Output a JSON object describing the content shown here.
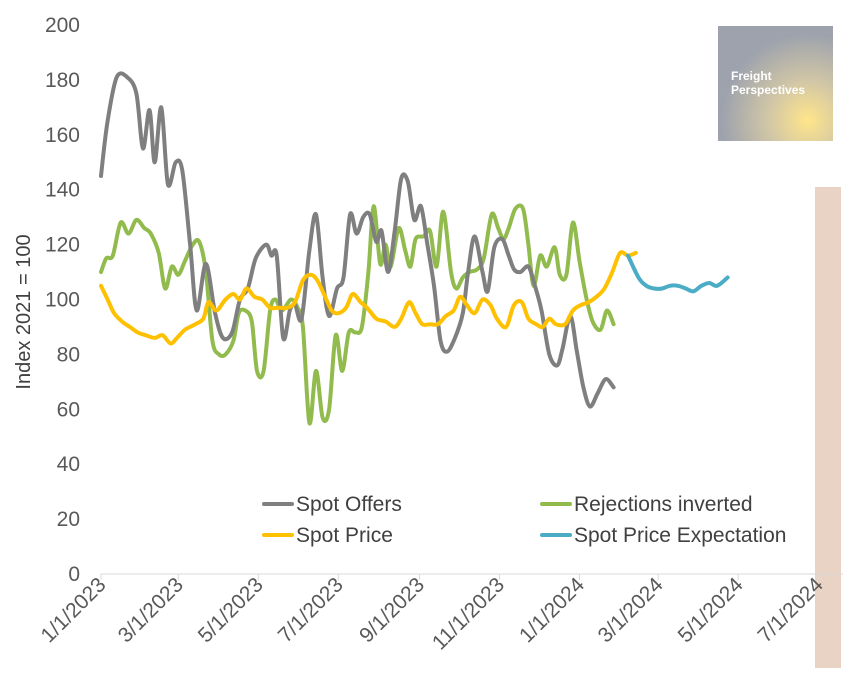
{
  "chart_data": {
    "type": "line",
    "ylabel": "Index 2021 = 100",
    "ylim": [
      0,
      200
    ],
    "y_ticks": [
      0,
      20,
      40,
      60,
      80,
      100,
      120,
      140,
      160,
      180,
      200
    ],
    "x_tick_labels": [
      "1/1/2023",
      "3/1/2023",
      "5/1/2023",
      "7/1/2023",
      "9/1/2023",
      "11/1/2023",
      "1/1/2024",
      "3/1/2024",
      "5/1/2024",
      "7/1/2024"
    ],
    "x_tick_days": [
      0,
      59,
      120,
      181,
      243,
      304,
      365,
      425,
      486,
      547
    ],
    "xlim_days": [
      0,
      566
    ],
    "shaded_band_days": [
      546,
      566
    ],
    "logo": {
      "line1": "Freight",
      "line2": "Perspectives"
    },
    "colors": {
      "spot_offers": "#7f7f7f",
      "rejections": "#92bb4e",
      "spot_price": "#ffc000",
      "expectation": "#4bacc6",
      "shade": "#e4cbbb"
    },
    "series": [
      {
        "key": "spot_offers",
        "name": "Spot Offers",
        "points": [
          [
            0,
            145
          ],
          [
            5,
            165
          ],
          [
            12,
            181
          ],
          [
            20,
            181
          ],
          [
            27,
            175
          ],
          [
            32,
            155
          ],
          [
            37,
            169
          ],
          [
            41,
            150
          ],
          [
            46,
            170
          ],
          [
            51,
            142
          ],
          [
            57,
            150
          ],
          [
            62,
            147
          ],
          [
            68,
            120
          ],
          [
            73,
            96
          ],
          [
            80,
            113
          ],
          [
            87,
            95
          ],
          [
            93,
            86
          ],
          [
            100,
            88
          ],
          [
            106,
            100
          ],
          [
            112,
            104
          ],
          [
            118,
            115
          ],
          [
            126,
            120
          ],
          [
            130,
            116
          ],
          [
            134,
            116
          ],
          [
            139,
            86
          ],
          [
            144,
            96
          ],
          [
            148,
            98
          ],
          [
            153,
            93
          ],
          [
            159,
            118
          ],
          [
            164,
            131
          ],
          [
            169,
            108
          ],
          [
            174,
            94
          ],
          [
            180,
            104
          ],
          [
            185,
            108
          ],
          [
            190,
            131
          ],
          [
            195,
            124
          ],
          [
            200,
            130
          ],
          [
            205,
            131
          ],
          [
            210,
            121
          ],
          [
            214,
            125
          ],
          [
            219,
            110
          ],
          [
            224,
            125
          ],
          [
            229,
            144
          ],
          [
            234,
            143
          ],
          [
            239,
            129
          ],
          [
            244,
            134
          ],
          [
            249,
            120
          ],
          [
            254,
            105
          ],
          [
            259,
            85
          ],
          [
            264,
            81
          ],
          [
            270,
            86
          ],
          [
            276,
            95
          ],
          [
            280,
            110
          ],
          [
            285,
            123
          ],
          [
            291,
            110
          ],
          [
            295,
            103
          ],
          [
            300,
            119
          ],
          [
            306,
            122
          ],
          [
            311,
            116
          ],
          [
            315,
            111
          ],
          [
            320,
            110
          ],
          [
            326,
            112
          ],
          [
            331,
            105
          ],
          [
            336,
            96
          ],
          [
            342,
            80
          ],
          [
            348,
            76
          ],
          [
            352,
            82
          ],
          [
            358,
            94
          ],
          [
            363,
            81
          ],
          [
            368,
            68
          ],
          [
            373,
            61
          ],
          [
            379,
            66
          ],
          [
            385,
            71
          ],
          [
            391,
            68
          ]
        ]
      },
      {
        "key": "rejections",
        "name": "Rejections inverted",
        "points": [
          [
            0,
            110
          ],
          [
            4,
            115
          ],
          [
            9,
            116
          ],
          [
            15,
            128
          ],
          [
            21,
            124
          ],
          [
            27,
            129
          ],
          [
            33,
            126
          ],
          [
            38,
            124
          ],
          [
            44,
            117
          ],
          [
            49,
            104
          ],
          [
            54,
            112
          ],
          [
            59,
            109
          ],
          [
            64,
            114
          ],
          [
            70,
            120
          ],
          [
            75,
            121
          ],
          [
            80,
            110
          ],
          [
            85,
            85
          ],
          [
            90,
            80
          ],
          [
            95,
            80
          ],
          [
            101,
            85
          ],
          [
            105,
            95
          ],
          [
            110,
            96
          ],
          [
            115,
            92
          ],
          [
            119,
            74
          ],
          [
            124,
            74
          ],
          [
            129,
            96
          ],
          [
            133,
            100
          ],
          [
            138,
            96
          ],
          [
            145,
            100
          ],
          [
            150,
            97
          ],
          [
            154,
            90
          ],
          [
            159,
            55
          ],
          [
            164,
            74
          ],
          [
            169,
            57
          ],
          [
            174,
            60
          ],
          [
            179,
            87
          ],
          [
            184,
            74
          ],
          [
            189,
            88
          ],
          [
            194,
            88
          ],
          [
            199,
            90
          ],
          [
            204,
            110
          ],
          [
            208,
            134
          ],
          [
            213,
            113
          ],
          [
            217,
            120
          ],
          [
            221,
            112
          ],
          [
            227,
            126
          ],
          [
            232,
            118
          ],
          [
            236,
            112
          ],
          [
            240,
            122
          ],
          [
            246,
            123
          ],
          [
            251,
            125
          ],
          [
            256,
            112
          ],
          [
            261,
            132
          ],
          [
            267,
            110
          ],
          [
            271,
            104
          ],
          [
            276,
            108
          ],
          [
            281,
            110
          ],
          [
            287,
            111
          ],
          [
            292,
            115
          ],
          [
            298,
            131
          ],
          [
            303,
            126
          ],
          [
            307,
            122
          ],
          [
            311,
            126
          ],
          [
            316,
            133
          ],
          [
            322,
            133
          ],
          [
            326,
            120
          ],
          [
            330,
            105
          ],
          [
            335,
            116
          ],
          [
            340,
            112
          ],
          [
            346,
            119
          ],
          [
            350,
            109
          ],
          [
            355,
            109
          ],
          [
            360,
            128
          ],
          [
            365,
            114
          ],
          [
            370,
            101
          ],
          [
            375,
            92
          ],
          [
            381,
            89
          ],
          [
            386,
            96
          ],
          [
            391,
            91
          ]
        ]
      },
      {
        "key": "spot_price",
        "name": "Spot Price",
        "points": [
          [
            0,
            105
          ],
          [
            5,
            100
          ],
          [
            10,
            95
          ],
          [
            16,
            92
          ],
          [
            22,
            90
          ],
          [
            28,
            88
          ],
          [
            34,
            87
          ],
          [
            41,
            86
          ],
          [
            47,
            87
          ],
          [
            53,
            84
          ],
          [
            58,
            86
          ],
          [
            64,
            89
          ],
          [
            72,
            91
          ],
          [
            78,
            93
          ],
          [
            82,
            99
          ],
          [
            88,
            96
          ],
          [
            95,
            100
          ],
          [
            101,
            102
          ],
          [
            106,
            100
          ],
          [
            111,
            104
          ],
          [
            117,
            101
          ],
          [
            123,
            100
          ],
          [
            129,
            97
          ],
          [
            135,
            97
          ],
          [
            142,
            97
          ],
          [
            148,
            99
          ],
          [
            154,
            107
          ],
          [
            160,
            109
          ],
          [
            165,
            107
          ],
          [
            171,
            101
          ],
          [
            176,
            96
          ],
          [
            181,
            95
          ],
          [
            187,
            97
          ],
          [
            192,
            102
          ],
          [
            198,
            99
          ],
          [
            203,
            97
          ],
          [
            210,
            93
          ],
          [
            217,
            92
          ],
          [
            224,
            90
          ],
          [
            229,
            93
          ],
          [
            235,
            99
          ],
          [
            240,
            95
          ],
          [
            245,
            91
          ],
          [
            251,
            91
          ],
          [
            257,
            91
          ],
          [
            263,
            94
          ],
          [
            269,
            96
          ],
          [
            274,
            101
          ],
          [
            279,
            98
          ],
          [
            285,
            95
          ],
          [
            291,
            100
          ],
          [
            297,
            98
          ],
          [
            302,
            93
          ],
          [
            309,
            90
          ],
          [
            315,
            98
          ],
          [
            321,
            99
          ],
          [
            326,
            93
          ],
          [
            332,
            91
          ],
          [
            337,
            90
          ],
          [
            342,
            93
          ],
          [
            347,
            91
          ],
          [
            354,
            91
          ],
          [
            360,
            96
          ],
          [
            366,
            98
          ],
          [
            372,
            99
          ],
          [
            378,
            101
          ],
          [
            384,
            104
          ],
          [
            390,
            110
          ],
          [
            396,
            117
          ],
          [
            402,
            116
          ],
          [
            408,
            117
          ]
        ]
      },
      {
        "key": "expectation",
        "name": "Spot Price Expectation",
        "points": [
          [
            402,
            116
          ],
          [
            410,
            108
          ],
          [
            416,
            105
          ],
          [
            422,
            104
          ],
          [
            428,
            104
          ],
          [
            434,
            105
          ],
          [
            440,
            105
          ],
          [
            446,
            104
          ],
          [
            452,
            103
          ],
          [
            458,
            105
          ],
          [
            464,
            106
          ],
          [
            470,
            105
          ],
          [
            478,
            108
          ]
        ]
      }
    ]
  }
}
